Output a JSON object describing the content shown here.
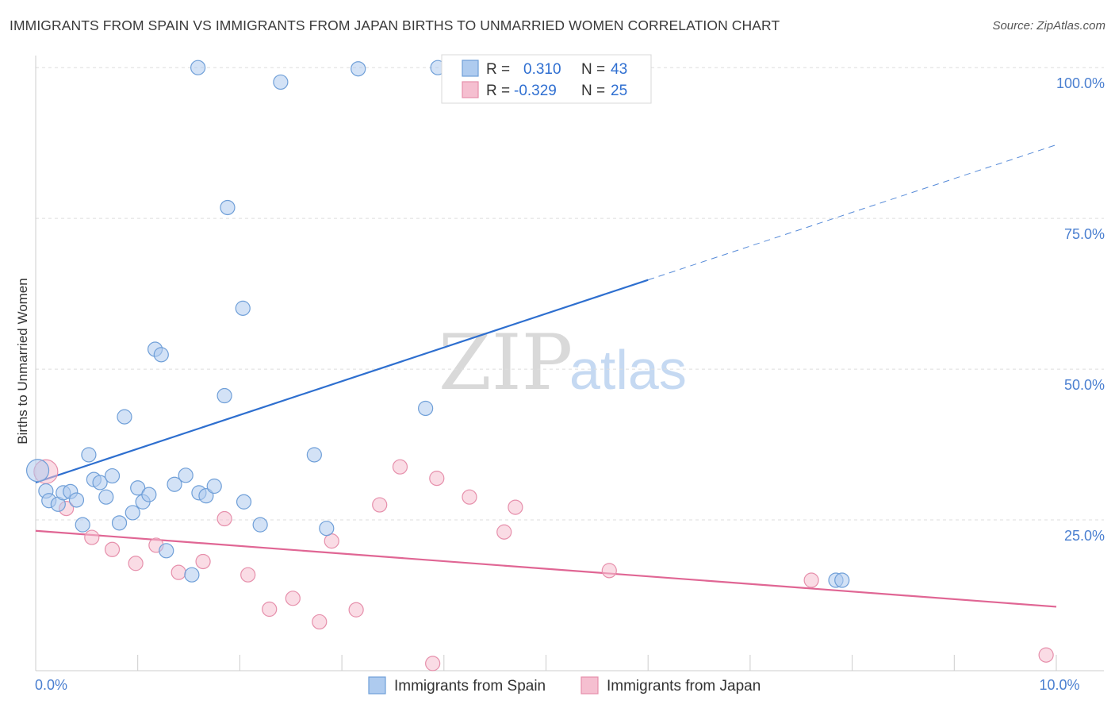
{
  "header": {
    "title": "IMMIGRANTS FROM SPAIN VS IMMIGRANTS FROM JAPAN BIRTHS TO UNMARRIED WOMEN CORRELATION CHART",
    "source": "Source: ZipAtlas.com"
  },
  "watermark": {
    "zip": "ZIP",
    "atlas": "atlas"
  },
  "colors": {
    "spain_fill": "#aecbef",
    "spain_stroke": "#6f9fd8",
    "spain_line": "#2e6fcf",
    "japan_fill": "#f5bfd0",
    "japan_stroke": "#e68fab",
    "japan_line": "#e06694",
    "tick_label": "#4a7fd0",
    "grid": "#dddddd"
  },
  "legend": {
    "spain": {
      "r_label": "R =",
      "r_value": "0.310",
      "n_label": "N =",
      "n_value": "43"
    },
    "japan": {
      "r_label": "R =",
      "r_value": "-0.329",
      "n_label": "N =",
      "n_value": "25"
    }
  },
  "chart_data": {
    "type": "scatter",
    "title": "IMMIGRANTS FROM SPAIN VS IMMIGRANTS FROM JAPAN BIRTHS TO UNMARRIED WOMEN CORRELATION CHART",
    "xlabel": "",
    "ylabel": "Births to Unmarried Women",
    "xlim": [
      0,
      10
    ],
    "ylim": [
      0,
      102
    ],
    "x_tick_labels": [
      {
        "value": 0,
        "label": "0.0%"
      },
      {
        "value": 10,
        "label": "10.0%"
      }
    ],
    "y_tick_labels": [
      {
        "value": 25,
        "label": "25.0%"
      },
      {
        "value": 50,
        "label": "50.0%"
      },
      {
        "value": 75,
        "label": "75.0%"
      },
      {
        "value": 100,
        "label": "100.0%"
      }
    ],
    "grid": true,
    "legend_position": "top-center",
    "series": [
      {
        "name": "Immigrants from Spain",
        "r": 0.31,
        "n": 43,
        "trend": {
          "x0": 0,
          "y0": 31.2,
          "x1": 6.0,
          "y1": 64.8,
          "dashed_to_x": 10,
          "dashed_to_y": 87.2
        },
        "points": [
          [
            0.02,
            33.2,
            14
          ],
          [
            0.1,
            29.8,
            9
          ],
          [
            0.13,
            28.2,
            9
          ],
          [
            0.22,
            27.6,
            9
          ],
          [
            0.27,
            29.5,
            9
          ],
          [
            0.34,
            29.7,
            9
          ],
          [
            0.4,
            28.3,
            9
          ],
          [
            0.46,
            24.2,
            9
          ],
          [
            0.52,
            35.8,
            9
          ],
          [
            0.57,
            31.7,
            9
          ],
          [
            0.63,
            31.2,
            9
          ],
          [
            0.69,
            28.8,
            9
          ],
          [
            0.75,
            32.3,
            9
          ],
          [
            0.82,
            24.5,
            9
          ],
          [
            0.87,
            42.1,
            9
          ],
          [
            0.95,
            26.2,
            9
          ],
          [
            1.0,
            30.3,
            9
          ],
          [
            1.05,
            28.0,
            9
          ],
          [
            1.11,
            29.2,
            9
          ],
          [
            1.17,
            53.3,
            9
          ],
          [
            1.23,
            52.4,
            9
          ],
          [
            1.28,
            19.9,
            9
          ],
          [
            1.36,
            30.9,
            9
          ],
          [
            1.47,
            32.4,
            9
          ],
          [
            1.53,
            15.9,
            9
          ],
          [
            1.6,
            29.5,
            9
          ],
          [
            1.67,
            29.0,
            9
          ],
          [
            1.75,
            30.6,
            9
          ],
          [
            1.85,
            45.6,
            9
          ],
          [
            1.88,
            76.8,
            9
          ],
          [
            2.03,
            60.1,
            9
          ],
          [
            2.04,
            28.0,
            9
          ],
          [
            2.2,
            24.2,
            9
          ],
          [
            2.4,
            97.6,
            9
          ],
          [
            2.73,
            35.8,
            9
          ],
          [
            2.85,
            23.6,
            9
          ],
          [
            3.16,
            99.8,
            9
          ],
          [
            3.82,
            43.5,
            9
          ],
          [
            3.94,
            100.0,
            9
          ],
          [
            7.84,
            15.0,
            9
          ],
          [
            7.9,
            15.0,
            9
          ],
          [
            1.59,
            100.0,
            9
          ],
          [
            4.7,
            100.0,
            9
          ]
        ]
      },
      {
        "name": "Immigrants from Japan",
        "r": -0.329,
        "n": 25,
        "trend": {
          "x0": 0,
          "y0": 23.2,
          "x1": 10,
          "y1": 10.6
        },
        "points": [
          [
            0.1,
            33.0,
            15
          ],
          [
            0.3,
            26.9,
            9
          ],
          [
            0.55,
            22.1,
            9
          ],
          [
            0.75,
            20.1,
            9
          ],
          [
            0.98,
            17.8,
            9
          ],
          [
            1.18,
            20.8,
            9
          ],
          [
            1.4,
            16.3,
            9
          ],
          [
            1.64,
            18.1,
            9
          ],
          [
            1.85,
            25.2,
            9
          ],
          [
            2.08,
            15.9,
            9
          ],
          [
            2.29,
            10.2,
            9
          ],
          [
            2.52,
            12.0,
            9
          ],
          [
            2.78,
            8.1,
            9
          ],
          [
            2.9,
            21.5,
            9
          ],
          [
            3.14,
            10.1,
            9
          ],
          [
            3.37,
            27.5,
            9
          ],
          [
            3.57,
            33.8,
            9
          ],
          [
            3.89,
            1.2,
            9
          ],
          [
            3.93,
            31.9,
            9
          ],
          [
            4.25,
            28.8,
            9
          ],
          [
            4.59,
            23.0,
            9
          ],
          [
            4.7,
            27.1,
            9
          ],
          [
            5.62,
            16.6,
            9
          ],
          [
            7.6,
            15.0,
            9
          ],
          [
            9.9,
            2.6,
            9
          ]
        ]
      }
    ]
  }
}
